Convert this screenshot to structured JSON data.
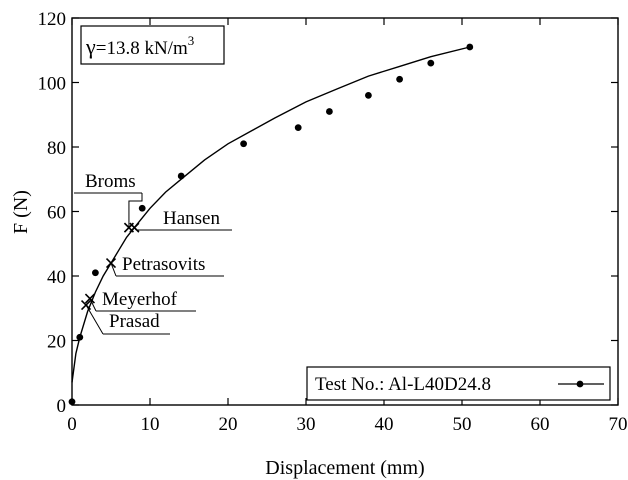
{
  "chart_data": {
    "type": "scatter",
    "xlabel": "Displacement (mm)",
    "ylabel": "F (N)",
    "xlim": [
      0,
      70
    ],
    "ylim": [
      0,
      120
    ],
    "xticks": [
      0,
      10,
      20,
      30,
      40,
      50,
      60,
      70
    ],
    "yticks": [
      0,
      20,
      40,
      60,
      80,
      100,
      120
    ],
    "grid": false,
    "unit_weight_label": {
      "symbol": "γ",
      "text": "=13.8 kN/m",
      "superscript": "3"
    },
    "legend": {
      "position": "bottom-right",
      "label": "Test No.: Al-L40D24.8"
    },
    "series": [
      {
        "name": "Test No.: Al-L40D24.8",
        "x": [
          0,
          1,
          3,
          9,
          14,
          22,
          29,
          33,
          38,
          42,
          46,
          51
        ],
        "y": [
          1,
          21,
          41,
          61,
          71,
          81,
          86,
          91,
          96,
          101,
          106,
          111
        ]
      }
    ],
    "fit_curve": {
      "x": [
        0,
        0.5,
        1,
        2,
        3,
        4,
        5,
        6,
        7,
        8,
        10,
        12,
        14,
        17,
        20,
        23,
        26,
        30,
        34,
        38,
        42,
        46,
        51
      ],
      "y": [
        7,
        16,
        21,
        29,
        35,
        40,
        44,
        48,
        52,
        55,
        61,
        66,
        70,
        76,
        81,
        85,
        89,
        94,
        98,
        102,
        105,
        108,
        111
      ]
    },
    "annotations": [
      {
        "label": "Broms",
        "x": 7.3,
        "y": 55
      },
      {
        "label": "Hansen",
        "x": 8.0,
        "y": 55
      },
      {
        "label": "Petrasovits",
        "x": 5.0,
        "y": 44
      },
      {
        "label": "Meyerhof",
        "x": 2.3,
        "y": 33
      },
      {
        "label": "Prasad",
        "x": 1.8,
        "y": 31
      }
    ]
  }
}
